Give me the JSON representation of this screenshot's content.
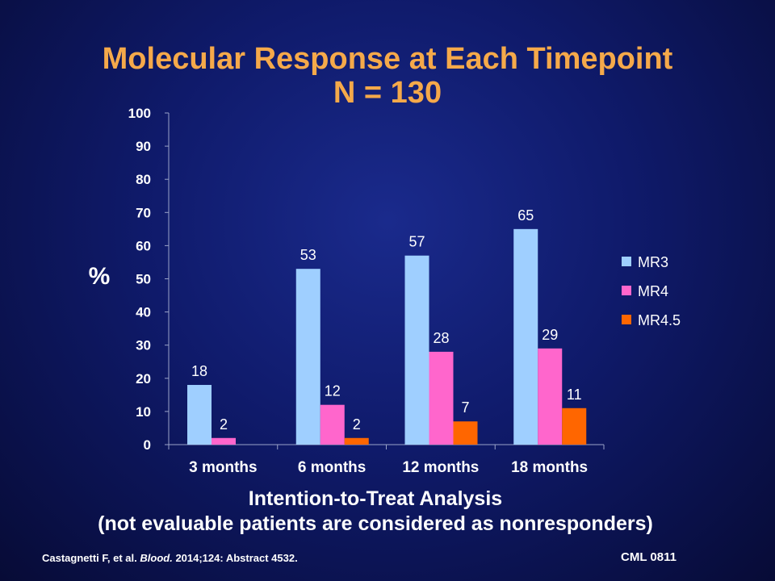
{
  "title": "Molecular Response at Each Timepoint",
  "subtitle": "N = 130",
  "analysis_title": "Intention-to-Treat Analysis",
  "analysis_note": "(not evaluable patients are considered as nonresponders)",
  "citation": {
    "authors": "Castagnetti F, et al.",
    "journal": "Blood.",
    "details": "2014;124: Abstract 4532."
  },
  "code": "CML 0811",
  "colors": {
    "title": "#f5a94a",
    "MR3": "#9fcfff",
    "MR4": "#ff66cc",
    "MR4.5": "#ff6600"
  },
  "chart_data": {
    "type": "bar",
    "categories": [
      "3 months",
      "6 months",
      "12 months",
      "18 months"
    ],
    "series": [
      {
        "name": "MR3",
        "values": [
          18,
          53,
          57,
          65
        ]
      },
      {
        "name": "MR4",
        "values": [
          2,
          12,
          28,
          29
        ]
      },
      {
        "name": "MR4.5",
        "values": [
          null,
          2,
          7,
          11
        ]
      }
    ],
    "ylabel": "%",
    "ylim": [
      0,
      100
    ],
    "yticks": [
      0,
      10,
      20,
      30,
      40,
      50,
      60,
      70,
      80,
      90,
      100
    ],
    "grid": false,
    "legend": "right",
    "data_labels": true
  }
}
